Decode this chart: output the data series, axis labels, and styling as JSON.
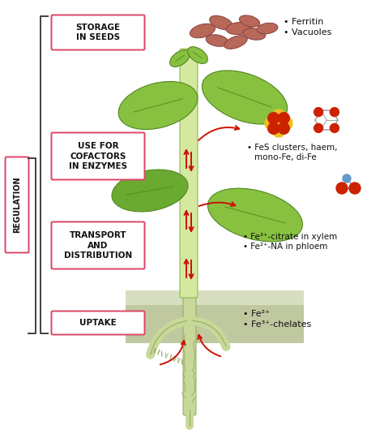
{
  "background_color": "#ffffff",
  "labels": {
    "storage": "STORAGE\nIN SEEDS",
    "use_for": "USE FOR\nCOFACTORS\nIN ENZYMES",
    "transport": "TRANSPORT\nAND\nDISTRIBUTION",
    "uptake": "UPTAKE",
    "regulation": "REGULATION"
  },
  "bullet_storage": [
    "Ferritin",
    "Vacuoles"
  ],
  "bullet_use": [
    "FeS clusters, haem,",
    "mono-Fe, di-Fe"
  ],
  "bullet_transport": [
    "Fe³⁺-citrate in xylem",
    "Fe²⁺-NA in phloem"
  ],
  "bullet_uptake": [
    "Fe²⁺",
    "Fe³⁺-chelates"
  ],
  "label_box_facecolor": "#ffffff",
  "label_box_edgecolor": "#dd4466",
  "regulation_box_facecolor": "#ffffff",
  "regulation_box_edgecolor": "#dd4466",
  "plant_stem_color": "#d4e8a0",
  "plant_stem_edge": "#90b850",
  "leaf_color_upper": "#88c040",
  "leaf_color_lower": "#6aaa30",
  "leaf_edge": "#508820",
  "root_color": "#c8d898",
  "root_edge": "#90a860",
  "soil_top_color": "#d8dfc0",
  "soil_bot_color": "#c0c8a0",
  "arrow_color": "#cc1100",
  "seed_color": "#b86858",
  "seed_edge": "#884040",
  "mol_yellow": "#f0c020",
  "mol_red": "#cc2200",
  "mol_blue": "#6699cc",
  "mol_gray": "#aaaaaa"
}
